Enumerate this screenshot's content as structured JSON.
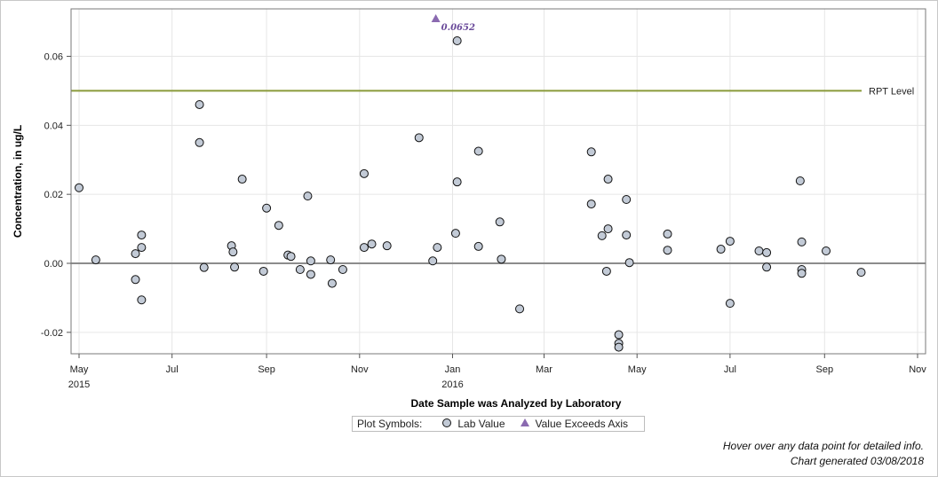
{
  "chart_data": {
    "type": "scatter",
    "xlabel": "Date Sample was Analyzed by Laboratory",
    "ylabel": "Concentration, in ug/L",
    "xlim": [
      "2015-05-01",
      "2016-11-01"
    ],
    "ylim": [
      -0.026,
      0.072
    ],
    "x_ticks": [
      {
        "date": "2015-05-01",
        "label": "May",
        "year": "2015"
      },
      {
        "date": "2015-07-01",
        "label": "Jul",
        "year": ""
      },
      {
        "date": "2015-09-01",
        "label": "Sep",
        "year": ""
      },
      {
        "date": "2015-11-01",
        "label": "Nov",
        "year": ""
      },
      {
        "date": "2016-01-01",
        "label": "Jan",
        "year": "2016"
      },
      {
        "date": "2016-03-01",
        "label": "Mar",
        "year": ""
      },
      {
        "date": "2016-05-01",
        "label": "May",
        "year": ""
      },
      {
        "date": "2016-07-01",
        "label": "Jul",
        "year": ""
      },
      {
        "date": "2016-09-01",
        "label": "Sep",
        "year": ""
      },
      {
        "date": "2016-11-01",
        "label": "Nov",
        "year": ""
      }
    ],
    "y_ticks": [
      {
        "value": -0.02,
        "label": "-0.02"
      },
      {
        "value": 0.0,
        "label": "0.00"
      },
      {
        "value": 0.02,
        "label": "0.02"
      },
      {
        "value": 0.04,
        "label": "0.04"
      },
      {
        "value": 0.06,
        "label": "0.06"
      }
    ],
    "grid": true,
    "reference_lines": [
      {
        "value": 0.05,
        "label": "RPT Level",
        "color": "#8a9a3a"
      },
      {
        "value": 0.0,
        "label": "",
        "color": "#8c8c8c"
      }
    ],
    "series": [
      {
        "name": "Lab Value",
        "marker": "circle",
        "color": "#c2cad6",
        "points": [
          {
            "x": "2015-05-01",
            "y": 0.0219
          },
          {
            "x": "2015-05-12",
            "y": 0.001
          },
          {
            "x": "2015-06-07",
            "y": 0.0028
          },
          {
            "x": "2015-06-07",
            "y": -0.0047
          },
          {
            "x": "2015-06-11",
            "y": 0.0082
          },
          {
            "x": "2015-06-11",
            "y": 0.0046
          },
          {
            "x": "2015-06-11",
            "y": -0.0106
          },
          {
            "x": "2015-07-19",
            "y": 0.046
          },
          {
            "x": "2015-07-19",
            "y": 0.035
          },
          {
            "x": "2015-07-22",
            "y": -0.0012
          },
          {
            "x": "2015-08-09",
            "y": 0.0051
          },
          {
            "x": "2015-08-10",
            "y": 0.0033
          },
          {
            "x": "2015-08-11",
            "y": -0.0011
          },
          {
            "x": "2015-08-16",
            "y": 0.0244
          },
          {
            "x": "2015-08-30",
            "y": -0.0023
          },
          {
            "x": "2015-09-01",
            "y": 0.016
          },
          {
            "x": "2015-09-09",
            "y": 0.011
          },
          {
            "x": "2015-09-15",
            "y": 0.0024
          },
          {
            "x": "2015-09-17",
            "y": 0.002
          },
          {
            "x": "2015-09-23",
            "y": -0.0018
          },
          {
            "x": "2015-09-28",
            "y": 0.0195
          },
          {
            "x": "2015-09-30",
            "y": 0.0007
          },
          {
            "x": "2015-09-30",
            "y": -0.0032
          },
          {
            "x": "2015-10-13",
            "y": 0.001
          },
          {
            "x": "2015-10-14",
            "y": -0.0058
          },
          {
            "x": "2015-10-21",
            "y": -0.0018
          },
          {
            "x": "2015-11-04",
            "y": 0.026
          },
          {
            "x": "2015-11-04",
            "y": 0.0046
          },
          {
            "x": "2015-11-09",
            "y": 0.0056
          },
          {
            "x": "2015-11-19",
            "y": 0.0051
          },
          {
            "x": "2015-12-10",
            "y": 0.0364
          },
          {
            "x": "2015-12-19",
            "y": 0.0007
          },
          {
            "x": "2015-12-22",
            "y": 0.0046
          },
          {
            "x": "2016-01-03",
            "y": 0.0087
          },
          {
            "x": "2016-01-04",
            "y": 0.0236
          },
          {
            "x": "2016-01-04",
            "y": 0.0645
          },
          {
            "x": "2016-01-18",
            "y": 0.0325
          },
          {
            "x": "2016-01-18",
            "y": 0.0049
          },
          {
            "x": "2016-02-01",
            "y": 0.012
          },
          {
            "x": "2016-02-02",
            "y": 0.0012
          },
          {
            "x": "2016-02-14",
            "y": -0.0132
          },
          {
            "x": "2016-04-01",
            "y": 0.0323
          },
          {
            "x": "2016-04-01",
            "y": 0.0172
          },
          {
            "x": "2016-04-08",
            "y": 0.008
          },
          {
            "x": "2016-04-11",
            "y": -0.0023
          },
          {
            "x": "2016-04-12",
            "y": 0.0244
          },
          {
            "x": "2016-04-12",
            "y": 0.01
          },
          {
            "x": "2016-04-19",
            "y": -0.0207
          },
          {
            "x": "2016-04-19",
            "y": -0.0232
          },
          {
            "x": "2016-04-19",
            "y": -0.0243
          },
          {
            "x": "2016-04-24",
            "y": 0.0185
          },
          {
            "x": "2016-04-24",
            "y": 0.0082
          },
          {
            "x": "2016-04-26",
            "y": 0.0002
          },
          {
            "x": "2016-05-21",
            "y": 0.0085
          },
          {
            "x": "2016-05-21",
            "y": 0.0038
          },
          {
            "x": "2016-06-25",
            "y": 0.0041
          },
          {
            "x": "2016-07-01",
            "y": 0.0064
          },
          {
            "x": "2016-07-01",
            "y": -0.0116
          },
          {
            "x": "2016-07-20",
            "y": 0.0036
          },
          {
            "x": "2016-07-25",
            "y": 0.0031
          },
          {
            "x": "2016-07-25",
            "y": -0.0011
          },
          {
            "x": "2016-08-16",
            "y": 0.0239
          },
          {
            "x": "2016-08-17",
            "y": 0.0062
          },
          {
            "x": "2016-08-17",
            "y": -0.0018
          },
          {
            "x": "2016-08-17",
            "y": -0.0029
          },
          {
            "x": "2016-09-02",
            "y": 0.0036
          },
          {
            "x": "2016-09-25",
            "y": -0.0026
          }
        ]
      },
      {
        "name": "Value Exceeds Axis",
        "marker": "triangle",
        "color": "#8a6ab0",
        "points": [
          {
            "x": "2015-12-21",
            "y": 0.0652,
            "label": "0.0652"
          }
        ]
      }
    ]
  },
  "legend": {
    "title": "Plot Symbols:",
    "items": [
      {
        "label": "Lab Value",
        "marker": "circle",
        "color": "#c2cad6"
      },
      {
        "label": "Value Exceeds Axis",
        "marker": "triangle",
        "color": "#8a6ab0"
      }
    ]
  },
  "footnotes": {
    "hover_hint": "Hover over any data point for detailed info.",
    "generated": "Chart generated 03/08/2018"
  }
}
